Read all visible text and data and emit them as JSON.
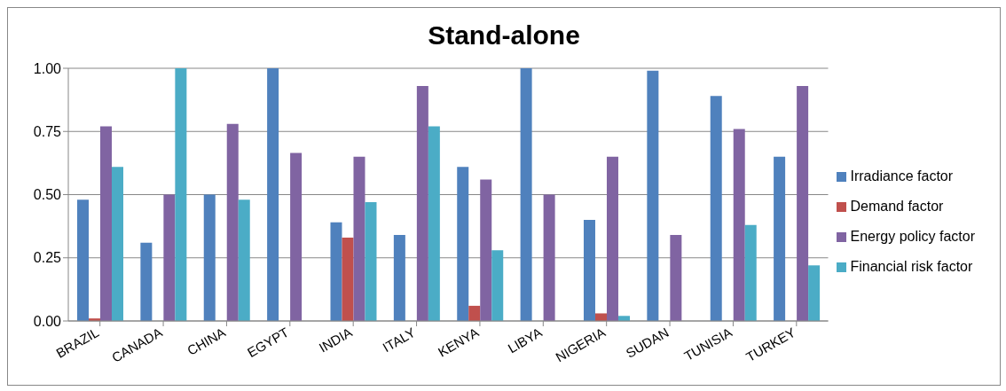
{
  "chart_data": {
    "type": "bar",
    "title": "Stand-alone",
    "categories": [
      "BRAZIL",
      "CANADA",
      "CHINA",
      "EGYPT",
      "INDIA",
      "ITALY",
      "KENYA",
      "LIBYA",
      "NIGERIA",
      "SUDAN",
      "TUNISIA",
      "TURKEY"
    ],
    "series": [
      {
        "name": "Irradiance factor",
        "color": "#4f81bd",
        "values": [
          0.48,
          0.31,
          0.5,
          1.0,
          0.39,
          0.34,
          0.61,
          1.0,
          0.4,
          0.99,
          0.89,
          0.65
        ]
      },
      {
        "name": "Demand factor",
        "color": "#c0504d",
        "values": [
          0.01,
          0,
          0,
          0,
          0.33,
          0,
          0.06,
          0,
          0.03,
          0,
          0,
          0
        ]
      },
      {
        "name": "Energy policy factor",
        "color": "#8064a2",
        "values": [
          0.77,
          0.5,
          0.78,
          0.665,
          0.65,
          0.93,
          0.56,
          0.5,
          0.65,
          0.34,
          0.76,
          0.93
        ]
      },
      {
        "name": "Financial risk factor",
        "color": "#4bacc6",
        "values": [
          0.61,
          1.0,
          0.48,
          0,
          0.47,
          0.77,
          0.28,
          0,
          0.02,
          0,
          0.38,
          0.22
        ]
      }
    ],
    "ylim": [
      0,
      1
    ],
    "yticks": [
      {
        "value": 0,
        "label": "0.00"
      },
      {
        "value": 0.25,
        "label": "0.25"
      },
      {
        "value": 0.5,
        "label": "0.50"
      },
      {
        "value": 0.75,
        "label": "0.75"
      },
      {
        "value": 1,
        "label": "1.00"
      }
    ],
    "grid": "y",
    "legend": "right"
  }
}
